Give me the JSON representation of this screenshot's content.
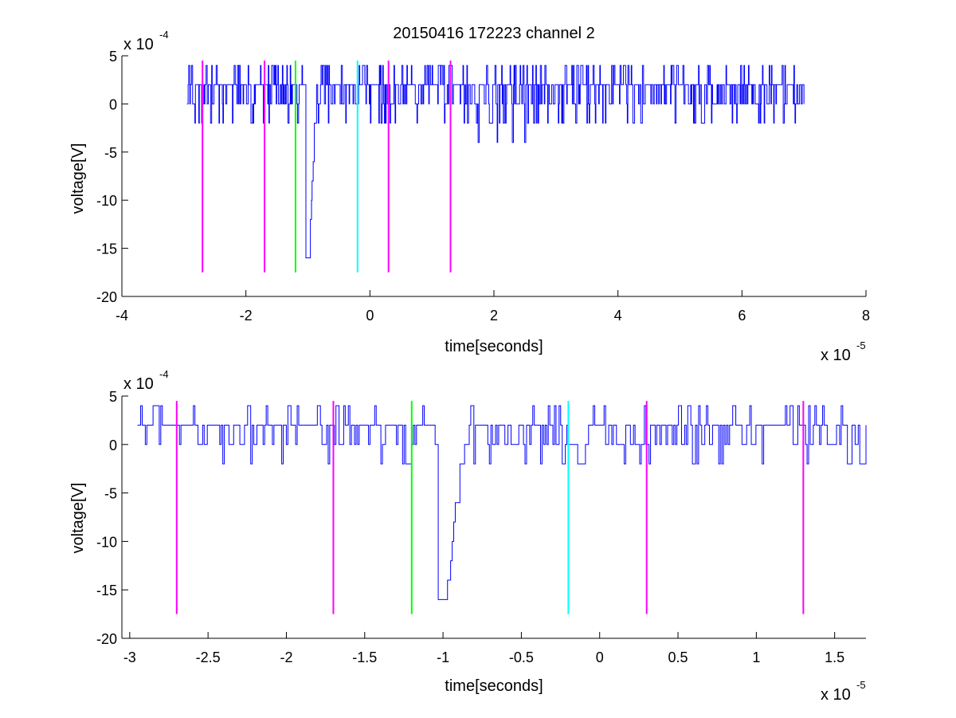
{
  "chart_data": [
    {
      "type": "line",
      "title": "20150416 172223 channel 2",
      "xlabel": "time[seconds]",
      "ylabel": "voltage[V]",
      "x_multiplier": {
        "base": "x 10",
        "exponent": "-5"
      },
      "y_multiplier": {
        "base": "x 10",
        "exponent": "-4"
      },
      "xlim": [
        -4,
        8
      ],
      "ylim": [
        -20,
        5
      ],
      "xticks": [
        -4,
        -2,
        0,
        2,
        4,
        6,
        8
      ],
      "xtick_labels": [
        "-4",
        "-2",
        "0",
        "2",
        "4",
        "6",
        "8"
      ],
      "yticks": [
        5,
        0,
        -5,
        -10,
        -15,
        -20
      ],
      "ytick_labels": [
        "5",
        "0",
        "-5",
        "-10",
        "-15",
        "-20"
      ],
      "grid": false,
      "series": [
        {
          "color": "#0000ff",
          "x_range": [
            -2.95,
            7.0
          ],
          "levels": [
            -2,
            0,
            2,
            4
          ],
          "spike": {
            "x": -1.0,
            "min": -16
          },
          "extra_dips": [
            {
              "x": 1.75,
              "value": -4
            },
            {
              "x": 2.05,
              "value": -4
            },
            {
              "x": 2.3,
              "value": -4
            },
            {
              "x": 2.5,
              "value": -4
            }
          ]
        }
      ],
      "markers": [
        {
          "x": -2.7,
          "color": "#ff00ff",
          "y_range": [
            -17.5,
            4.5
          ]
        },
        {
          "x": -1.7,
          "color": "#ff00ff",
          "y_range": [
            -17.5,
            4.5
          ]
        },
        {
          "x": -1.2,
          "color": "#00ff00",
          "y_range": [
            -17.5,
            4.5
          ]
        },
        {
          "x": -0.2,
          "color": "#00ffff",
          "y_range": [
            -17.5,
            4.5
          ]
        },
        {
          "x": 0.3,
          "color": "#ff00ff",
          "y_range": [
            -17.5,
            4.5
          ]
        },
        {
          "x": 1.3,
          "color": "#ff00ff",
          "y_range": [
            -17.5,
            4.5
          ]
        }
      ]
    },
    {
      "type": "line",
      "title": "",
      "xlabel": "time[seconds]",
      "ylabel": "voltage[V]",
      "x_multiplier": {
        "base": "x 10",
        "exponent": "-5"
      },
      "y_multiplier": {
        "base": "x 10",
        "exponent": "-4"
      },
      "xlim": [
        -3.05,
        1.7
      ],
      "ylim": [
        -20,
        5
      ],
      "xticks": [
        -3,
        -2.5,
        -2,
        -1.5,
        -1,
        -0.5,
        0,
        0.5,
        1,
        1.5
      ],
      "xtick_labels": [
        "-3",
        "-2.5",
        "-2",
        "-1.5",
        "-1",
        "-0.5",
        "0",
        "0.5",
        "1",
        "1.5"
      ],
      "yticks": [
        5,
        0,
        -5,
        -10,
        -15,
        -20
      ],
      "ytick_labels": [
        "5",
        "0",
        "-5",
        "-10",
        "-15",
        "-20"
      ],
      "grid": false,
      "series": [
        {
          "color": "#0000ff",
          "x_range": [
            -2.95,
            1.7
          ],
          "levels": [
            -2,
            0,
            2,
            4
          ],
          "spike": {
            "x": -1.0,
            "min": -16
          },
          "extra_dips": []
        }
      ],
      "markers": [
        {
          "x": -2.7,
          "color": "#ff00ff",
          "y_range": [
            -17.5,
            4.5
          ]
        },
        {
          "x": -1.7,
          "color": "#ff00ff",
          "y_range": [
            -17.5,
            4.5
          ]
        },
        {
          "x": -1.2,
          "color": "#00ff00",
          "y_range": [
            -17.5,
            4.5
          ]
        },
        {
          "x": -0.2,
          "color": "#00ffff",
          "y_range": [
            -17.5,
            4.5
          ]
        },
        {
          "x": 0.3,
          "color": "#ff00ff",
          "y_range": [
            -17.5,
            4.5
          ]
        },
        {
          "x": 1.3,
          "color": "#ff00ff",
          "y_range": [
            -17.5,
            4.5
          ]
        }
      ]
    }
  ]
}
